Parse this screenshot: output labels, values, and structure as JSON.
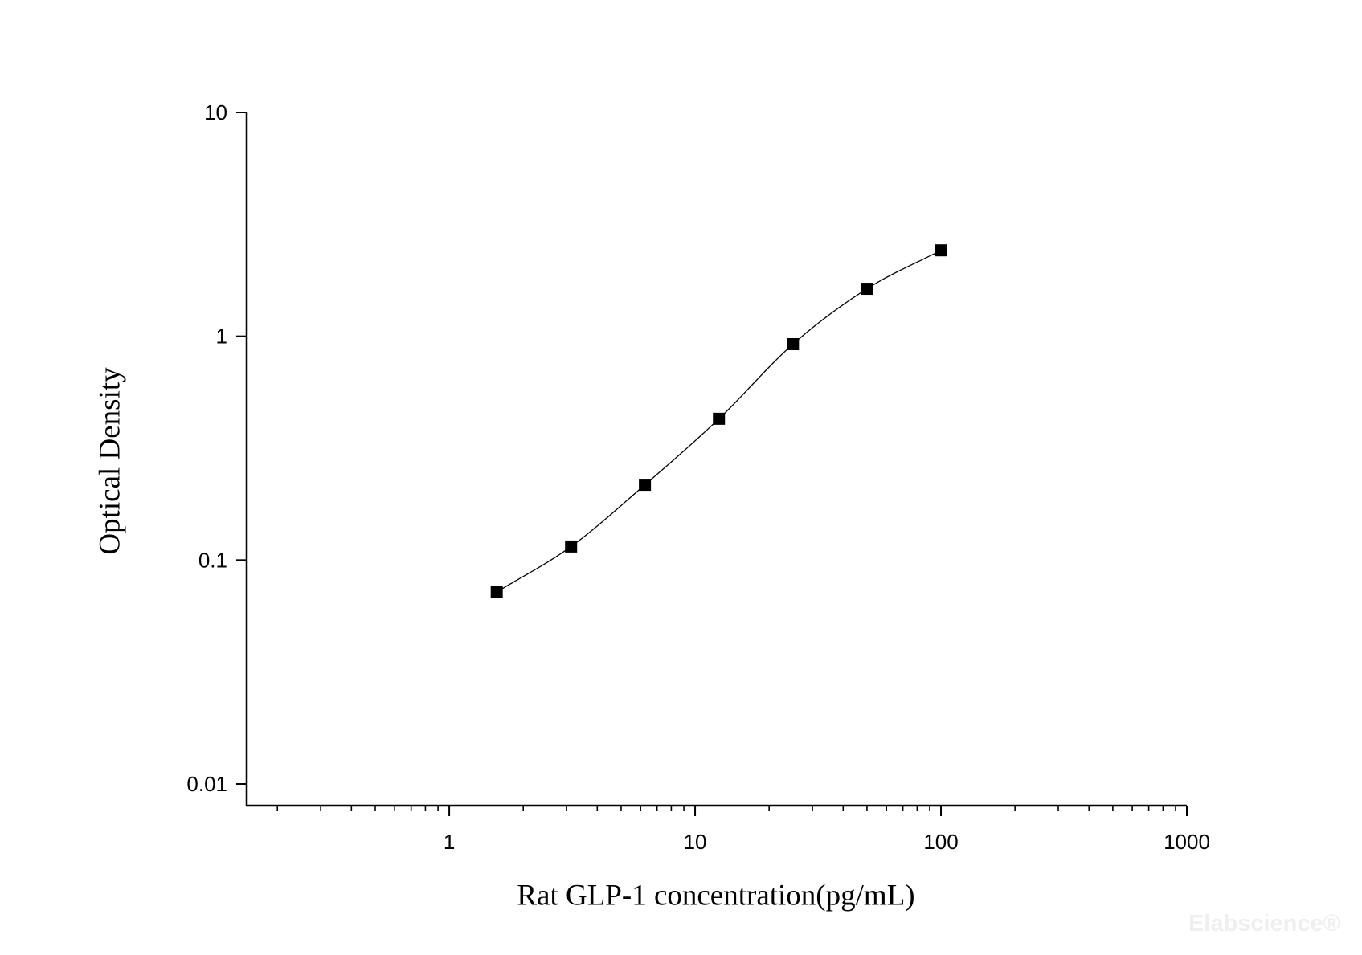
{
  "chart_data": {
    "type": "scatter",
    "xlabel": "Rat GLP-1 concentration(pg/mL)",
    "ylabel": "Optical Density",
    "xscale": "log",
    "yscale": "log",
    "xlim": [
      0.15,
      1000
    ],
    "ylim": [
      0.008,
      10
    ],
    "xticks": [
      "1",
      "10",
      "100",
      "1000"
    ],
    "yticks": [
      "10",
      "1",
      "0.1",
      "0.01"
    ],
    "grid": false,
    "legend": "none",
    "fit_curve": true,
    "series": [
      {
        "x": [
          1.56,
          3.13,
          6.25,
          12.5,
          25,
          50,
          100
        ],
        "y": [
          0.072,
          0.115,
          0.217,
          0.428,
          0.922,
          1.63,
          2.42
        ],
        "marker": "square",
        "color": "#000000"
      }
    ]
  },
  "watermark": "Elabscience®"
}
